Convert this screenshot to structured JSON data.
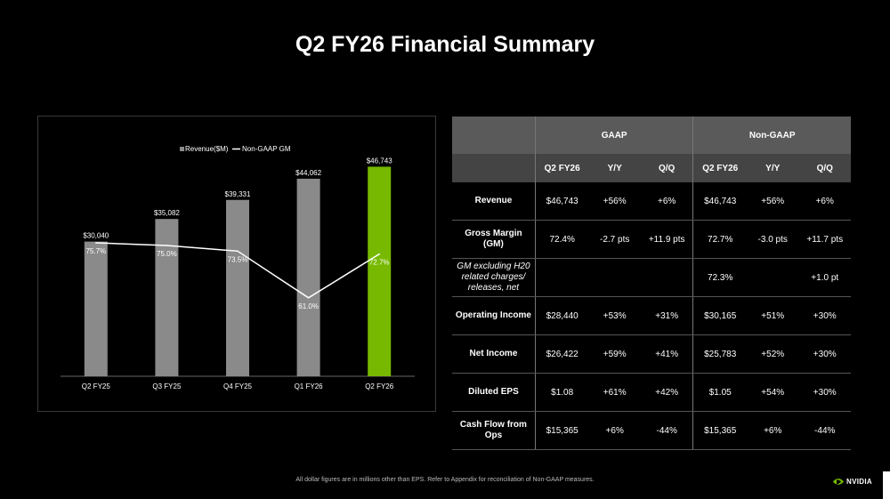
{
  "title": "Q2 FY26 Financial Summary",
  "chart_data": {
    "type": "bar",
    "categories": [
      "Q2 FY25",
      "Q3 FY25",
      "Q4 FY25",
      "Q1 FY26",
      "Q2 FY26"
    ],
    "series": [
      {
        "name": "Revenue($M)",
        "type": "bar",
        "values": [
          30040,
          35082,
          39331,
          44062,
          46743
        ],
        "labels": [
          "$30,040",
          "$35,082",
          "$39,331",
          "$44,062",
          "$46,743"
        ]
      },
      {
        "name": "Non-GAAP GM",
        "type": "line",
        "values": [
          75.7,
          75.0,
          73.5,
          61.0,
          72.7
        ],
        "labels": [
          "75.7%",
          "75.0%",
          "73.5%",
          "61.0%",
          "72.7%"
        ]
      }
    ],
    "bar_color": "#8a8a8a",
    "highlight_color": "#76b900",
    "highlight_index": 4,
    "line_color": "#ffffff",
    "legend": [
      "Revenue($M)",
      "Non-GAAP GM"
    ],
    "legend_position": "top-center",
    "ylim": [
      0,
      50000
    ],
    "ylim_secondary": [
      40,
      100
    ],
    "grid": false
  },
  "table": {
    "group_headers": [
      "GAAP",
      "Non-GAAP"
    ],
    "col_headers": [
      "Q2 FY26",
      "Y/Y",
      "Q/Q",
      "Q2 FY26",
      "Y/Y",
      "Q/Q"
    ],
    "rows": [
      {
        "label": "Revenue",
        "cells": [
          "$46,743",
          "+56%",
          "+6%",
          "$46,743",
          "+56%",
          "+6%"
        ]
      },
      {
        "label": "Gross Margin (GM)",
        "cells": [
          "72.4%",
          "-2.7 pts",
          "+11.9 pts",
          "72.7%",
          "-3.0 pts",
          "+11.7 pts"
        ]
      },
      {
        "label": "GM excluding H20 related charges/ releases, net",
        "cells": [
          "",
          "",
          "",
          "72.3%",
          "",
          "+1.0 pt"
        ]
      },
      {
        "label": "Operating Income",
        "cells": [
          "$28,440",
          "+53%",
          "+31%",
          "$30,165",
          "+51%",
          "+30%"
        ]
      },
      {
        "label": "Net Income",
        "cells": [
          "$26,422",
          "+59%",
          "+41%",
          "$25,783",
          "+52%",
          "+30%"
        ]
      },
      {
        "label": "Diluted EPS",
        "cells": [
          "$1.08",
          "+61%",
          "+42%",
          "$1.05",
          "+54%",
          "+30%"
        ]
      },
      {
        "label": "Cash Flow from Ops",
        "cells": [
          "$15,365",
          "+6%",
          "-44%",
          "$15,365",
          "+6%",
          "-44%"
        ]
      }
    ]
  },
  "footnote": "All dollar figures are in millions other than EPS. Refer to Appendix for reconciliation of Non-GAAP measures.",
  "logo_text": "NVIDIA",
  "logo_color": "#76b900"
}
